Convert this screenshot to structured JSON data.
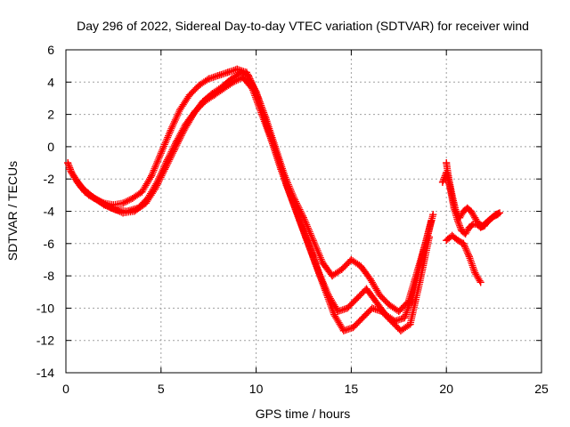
{
  "chart_data": {
    "type": "scatter",
    "title": "Day 296 of 2022, Sidereal Day-to-day VTEC variation (SDTVAR) for receiver wind",
    "xlabel": "GPS time / hours",
    "ylabel": "SDTVAR / TECUs",
    "xlim": [
      0,
      25
    ],
    "ylim": [
      -14,
      6
    ],
    "xticks": [
      0,
      5,
      10,
      15,
      20,
      25
    ],
    "yticks": [
      -14,
      -12,
      -10,
      -8,
      -6,
      -4,
      -2,
      0,
      2,
      4,
      6
    ],
    "grid": true,
    "legend": "none",
    "marker": "+",
    "color": "#ff0000",
    "series": [
      {
        "name": "trace-a",
        "x": [
          0.1,
          0.3,
          0.6,
          1.0,
          1.5,
          2.0,
          2.5,
          3.0,
          3.5,
          4.0,
          4.5,
          5.0,
          5.5,
          6.0,
          6.5,
          7.0,
          7.5,
          8.0,
          8.5,
          9.0,
          9.5,
          10.0,
          10.5,
          11.0,
          11.5,
          12.0,
          12.5,
          13.0,
          13.5,
          14.0,
          14.5,
          15.0,
          15.5,
          16.0,
          16.5,
          17.0,
          17.5,
          18.0,
          18.5,
          19.0,
          19.3
        ],
        "y": [
          -1.0,
          -1.6,
          -2.2,
          -2.8,
          -3.2,
          -3.5,
          -3.6,
          -3.5,
          -3.2,
          -2.8,
          -1.8,
          -0.4,
          1.0,
          2.3,
          3.2,
          3.8,
          4.2,
          4.4,
          4.6,
          4.8,
          4.6,
          3.4,
          1.8,
          0.0,
          -1.8,
          -3.2,
          -4.4,
          -5.8,
          -7.2,
          -8.0,
          -7.6,
          -7.0,
          -7.4,
          -8.2,
          -9.2,
          -9.8,
          -10.2,
          -9.6,
          -7.6,
          -5.6,
          -4.2
        ]
      },
      {
        "name": "trace-b",
        "x": [
          0.2,
          0.5,
          0.9,
          1.4,
          2.0,
          2.6,
          3.2,
          3.8,
          4.3,
          4.8,
          5.3,
          5.8,
          6.3,
          6.8,
          7.3,
          7.8,
          8.3,
          8.8,
          9.3,
          9.8,
          10.3,
          10.8,
          11.3,
          11.8,
          12.3,
          12.8,
          13.3,
          13.8,
          14.3,
          14.8,
          15.3,
          15.8,
          16.3,
          16.8,
          17.3,
          17.8,
          18.3,
          18.8,
          19.2
        ],
        "y": [
          -1.4,
          -2.0,
          -2.6,
          -3.1,
          -3.6,
          -3.9,
          -4.0,
          -3.8,
          -3.2,
          -2.2,
          -0.9,
          0.3,
          1.4,
          2.2,
          2.8,
          3.2,
          3.6,
          4.0,
          4.3,
          3.6,
          2.0,
          0.4,
          -1.4,
          -3.0,
          -4.6,
          -6.2,
          -7.8,
          -9.2,
          -10.2,
          -10.0,
          -9.4,
          -8.8,
          -9.6,
          -10.4,
          -10.8,
          -10.6,
          -9.0,
          -6.4,
          -4.6
        ]
      },
      {
        "name": "trace-c",
        "x": [
          0.4,
          0.8,
          1.2,
          1.8,
          2.4,
          3.0,
          3.6,
          4.2,
          4.7,
          5.2,
          5.7,
          6.2,
          6.7,
          7.2,
          7.7,
          8.2,
          8.7,
          9.2,
          9.6,
          10.1,
          10.6,
          11.1,
          11.6,
          12.1,
          12.6,
          13.1,
          13.6,
          14.1,
          14.6,
          15.1,
          15.6,
          16.1,
          16.6,
          17.1,
          17.6,
          18.1,
          18.6,
          19.1
        ],
        "y": [
          -1.8,
          -2.5,
          -3.0,
          -3.4,
          -3.8,
          -4.1,
          -4.0,
          -3.5,
          -2.6,
          -1.4,
          -0.2,
          1.0,
          2.0,
          2.8,
          3.3,
          3.7,
          4.2,
          4.6,
          4.4,
          3.0,
          1.2,
          -0.6,
          -2.4,
          -4.0,
          -5.6,
          -7.2,
          -8.8,
          -10.4,
          -11.4,
          -11.2,
          -10.6,
          -10.0,
          -10.2,
          -10.8,
          -11.4,
          -11.0,
          -8.4,
          -5.6
        ]
      },
      {
        "name": "trace-d",
        "x": [
          19.8,
          20.0,
          20.2,
          20.4,
          20.6,
          20.8,
          21.0,
          21.2,
          21.4,
          21.6,
          21.8,
          22.0,
          22.2,
          22.4,
          22.6,
          22.8
        ],
        "y": [
          -2.2,
          -1.6,
          -2.6,
          -3.8,
          -4.6,
          -5.2,
          -5.4,
          -5.0,
          -4.8,
          -4.8,
          -5.0,
          -4.9,
          -4.6,
          -4.4,
          -4.2,
          -4.1
        ]
      },
      {
        "name": "trace-e",
        "x": [
          20.0,
          20.1,
          20.3,
          20.5,
          20.7,
          20.9,
          21.1,
          21.3,
          21.5,
          21.7,
          21.9,
          22.1,
          22.3,
          22.5,
          22.7
        ],
        "y": [
          -1.0,
          -1.8,
          -3.0,
          -4.0,
          -4.4,
          -4.0,
          -3.8,
          -4.0,
          -4.4,
          -4.8,
          -4.9,
          -4.7,
          -4.5,
          -4.3,
          -4.2
        ]
      },
      {
        "name": "trace-f",
        "x": [
          20.0,
          20.3,
          20.6,
          20.9,
          21.2,
          21.5,
          21.8
        ],
        "y": [
          -5.8,
          -5.5,
          -5.8,
          -6.0,
          -6.8,
          -7.8,
          -8.4
        ]
      }
    ]
  }
}
